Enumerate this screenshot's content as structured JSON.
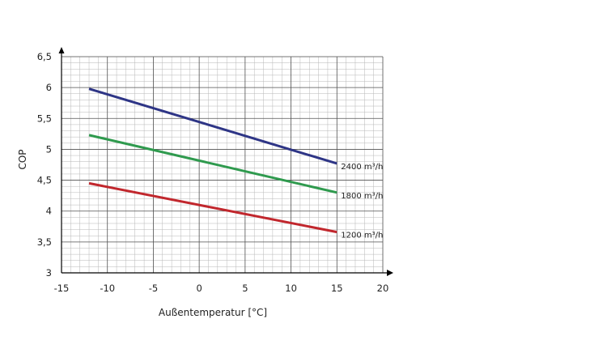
{
  "chart_data": {
    "type": "line",
    "xlabel": "Außentemperatur [°C]",
    "ylabel": "COP",
    "xlim": [
      -15,
      20
    ],
    "ylim": [
      3,
      6.5
    ],
    "x_ticks": [
      -15,
      -10,
      -5,
      0,
      5,
      10,
      15,
      20
    ],
    "y_ticks": [
      3,
      3.5,
      4,
      4.5,
      5,
      5.5,
      6,
      6.5
    ],
    "x_tick_labels": [
      "-15",
      "-10",
      "-5",
      "0",
      "5",
      "10",
      "15",
      "20"
    ],
    "y_tick_labels": [
      "3",
      "3,5",
      "4",
      "4,5",
      "5",
      "5,5",
      "6",
      "6,5"
    ],
    "grid": true,
    "series": [
      {
        "name": "2400 m³/h",
        "color": "#2e3586",
        "x": [
          -12,
          15
        ],
        "y": [
          5.98,
          4.77
        ]
      },
      {
        "name": "1800 m³/h",
        "color": "#2f9a4e",
        "x": [
          -12,
          15
        ],
        "y": [
          5.23,
          4.3
        ]
      },
      {
        "name": "1200 m³/h",
        "color": "#c1272d",
        "x": [
          -12,
          15
        ],
        "y": [
          4.45,
          3.66
        ]
      }
    ]
  }
}
